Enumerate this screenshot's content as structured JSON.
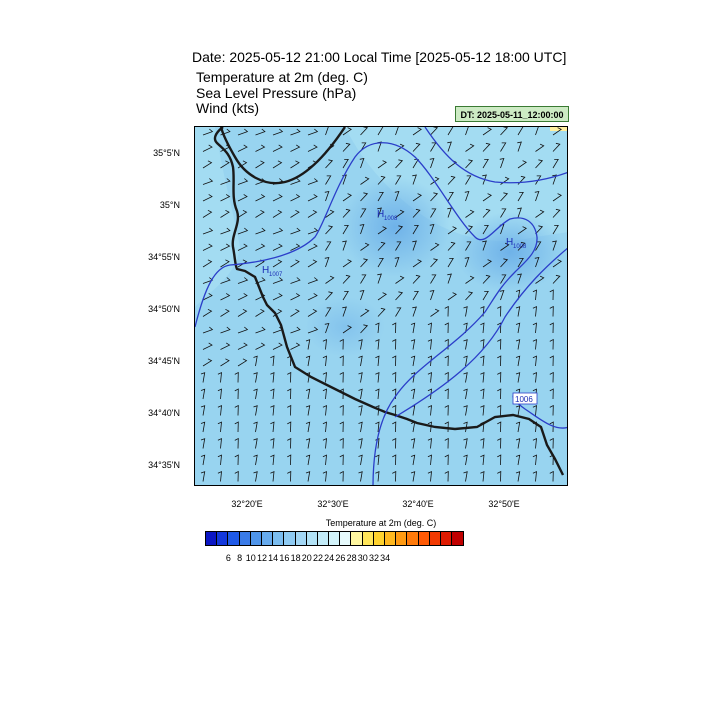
{
  "header": {
    "title": "Date: 2025-05-12  21:00 Local Time [2025-05-12  18:00 UTC]",
    "variables": [
      "Temperature at 2m   (deg. C)",
      "Sea Level Pressure   (hPa)",
      "Wind   (kts)"
    ],
    "init_time": "DT: 2025-05-11_12:00:00"
  },
  "map": {
    "lat_labels": [
      "35°5'N",
      "35°N",
      "34°55'N",
      "34°50'N",
      "34°45'N",
      "34°40'N",
      "34°35'N"
    ],
    "lon_labels": [
      "32°20'E",
      "32°30'E",
      "32°40'E",
      "32°50'E"
    ],
    "pressure_labels": [
      {
        "text": "H",
        "sub": "1008"
      },
      {
        "text": "H",
        "sub": "1008"
      },
      {
        "text": "H",
        "sub": "1007"
      }
    ],
    "contour_box_label": "1006",
    "colors": {
      "sea": "#9fdcf2",
      "land_cool": "#7cc1ea",
      "coast": "#1a1a1a",
      "isobar": "#2b3ec9",
      "barb": "#111111"
    }
  },
  "colorbar": {
    "title": "Temperature at 2m  (deg. C)",
    "labels": [
      "6",
      "8",
      "10",
      "12",
      "14",
      "16",
      "18",
      "20",
      "22",
      "24",
      "26",
      "28",
      "30",
      "32",
      "34"
    ],
    "colors": [
      "#0b16c4",
      "#1338dd",
      "#1f5ae8",
      "#3a7be8",
      "#4f95ea",
      "#67abee",
      "#7bbdf0",
      "#8fcbf3",
      "#a3d7f5",
      "#b2e2f6",
      "#c2ebf8",
      "#d2f3fa",
      "#e6fafc",
      "#fff7a0",
      "#ffe65a",
      "#ffd22e",
      "#ffb81f",
      "#ff9a12",
      "#ff7a0a",
      "#ff5a05",
      "#f23a02",
      "#df1b01",
      "#c00000"
    ]
  }
}
